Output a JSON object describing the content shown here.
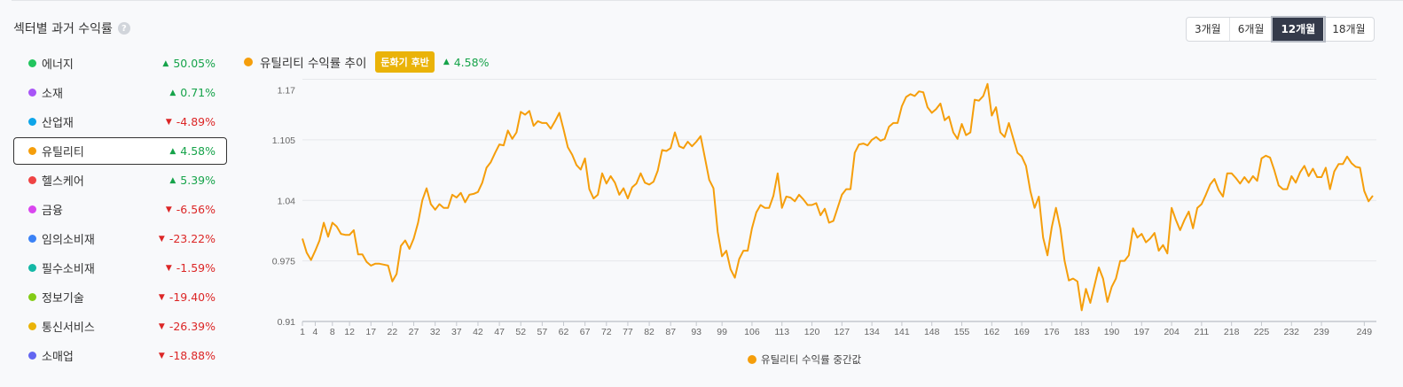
{
  "title": "섹터별 과거 수익률",
  "help_icon": "question-circle-icon",
  "periods": [
    {
      "label": "3개월"
    },
    {
      "label": "6개월"
    },
    {
      "label": "12개월",
      "active": true
    },
    {
      "label": "18개월"
    }
  ],
  "sectors": [
    {
      "name": "에너지",
      "color": "#22c55e",
      "dir": "up",
      "pct": "50.05%"
    },
    {
      "name": "소재",
      "color": "#a855f7",
      "dir": "up",
      "pct": "0.71%"
    },
    {
      "name": "산업재",
      "color": "#0ea5e9",
      "dir": "down",
      "pct": "-4.89%"
    },
    {
      "name": "유틸리티",
      "color": "#f59e0b",
      "dir": "up",
      "pct": "4.58%",
      "selected": true
    },
    {
      "name": "헬스케어",
      "color": "#ef4444",
      "dir": "up",
      "pct": "5.39%"
    },
    {
      "name": "금융",
      "color": "#d946ef",
      "dir": "down",
      "pct": "-6.56%"
    },
    {
      "name": "임의소비재",
      "color": "#3b82f6",
      "dir": "down",
      "pct": "-23.22%"
    },
    {
      "name": "필수소비재",
      "color": "#14b8a6",
      "dir": "down",
      "pct": "-1.59%"
    },
    {
      "name": "정보기술",
      "color": "#84cc16",
      "dir": "down",
      "pct": "-19.40%"
    },
    {
      "name": "통신서비스",
      "color": "#eab308",
      "dir": "down",
      "pct": "-26.39%"
    },
    {
      "name": "소매업",
      "color": "#6366f1",
      "dir": "down",
      "pct": "-18.88%"
    }
  ],
  "chart_header": {
    "title": "유틸리티 수익률 추이",
    "badge": "둔화기 후반",
    "pct": "4.58%",
    "color": "#f59e0b"
  },
  "chart_data": {
    "type": "line",
    "ylim": [
      0.91,
      1.17
    ],
    "yticks": [
      "1.17",
      "1.105",
      "1.04",
      "0.975",
      "0.91"
    ],
    "xticks": [
      1,
      4,
      8,
      12,
      17,
      22,
      27,
      32,
      37,
      42,
      47,
      52,
      57,
      62,
      67,
      72,
      77,
      82,
      87,
      93,
      99,
      106,
      113,
      120,
      127,
      134,
      141,
      148,
      155,
      162,
      169,
      176,
      183,
      190,
      197,
      204,
      211,
      218,
      225,
      232,
      239,
      249
    ],
    "grid": true,
    "legend_position": "bottom",
    "series": [
      {
        "name": "유틸리티 수익률 중간값",
        "color": "#f59e0b",
        "values": [
          0.999,
          0.984,
          0.976,
          0.986,
          0.997,
          1.016,
          1.001,
          1.016,
          1.012,
          1.004,
          1.003,
          1.003,
          1.008,
          0.982,
          0.982,
          0.974,
          0.97,
          0.972,
          0.972,
          0.971,
          0.97,
          0.953,
          0.961,
          0.991,
          0.997,
          0.988,
          0.999,
          1.016,
          1.04,
          1.053,
          1.036,
          1.03,
          1.036,
          1.032,
          1.032,
          1.046,
          1.043,
          1.048,
          1.038,
          1.046,
          1.047,
          1.049,
          1.059,
          1.075,
          1.081,
          1.091,
          1.1,
          1.099,
          1.115,
          1.106,
          1.113,
          1.135,
          1.132,
          1.136,
          1.12,
          1.125,
          1.123,
          1.123,
          1.117,
          1.125,
          1.134,
          1.116,
          1.097,
          1.089,
          1.078,
          1.073,
          1.085,
          1.052,
          1.042,
          1.046,
          1.069,
          1.058,
          1.066,
          1.059,
          1.046,
          1.053,
          1.042,
          1.054,
          1.058,
          1.069,
          1.059,
          1.057,
          1.06,
          1.072,
          1.094,
          1.093,
          1.096,
          1.113,
          1.098,
          1.096,
          1.103,
          1.098,
          1.103,
          1.109,
          1.086,
          1.062,
          1.053,
          1.006,
          0.98,
          0.986,
          0.966,
          0.957,
          0.977,
          0.986,
          0.986,
          1.01,
          1.027,
          1.035,
          1.032,
          1.032,
          1.045,
          1.069,
          1.032,
          1.044,
          1.043,
          1.039,
          1.046,
          1.041,
          1.035,
          1.035,
          1.037,
          1.024,
          1.031,
          1.016,
          1.018,
          1.032,
          1.046,
          1.052,
          1.052,
          1.091,
          1.1,
          1.101,
          1.099,
          1.105,
          1.108,
          1.104,
          1.106,
          1.119,
          1.123,
          1.123,
          1.141,
          1.151,
          1.154,
          1.152,
          1.157,
          1.156,
          1.14,
          1.134,
          1.138,
          1.144,
          1.126,
          1.13,
          1.113,
          1.106,
          1.122,
          1.11,
          1.113,
          1.148,
          1.147,
          1.152,
          1.165,
          1.131,
          1.14,
          1.113,
          1.108,
          1.123,
          1.107,
          1.091,
          1.087,
          1.077,
          1.05,
          1.032,
          1.044,
          1.0,
          0.981,
          1.011,
          1.032,
          1.01,
          0.975,
          0.954,
          0.956,
          0.953,
          0.922,
          0.945,
          0.93,
          0.949,
          0.968,
          0.956,
          0.931,
          0.947,
          0.956,
          0.975,
          0.975,
          0.981,
          1.01,
          1.0,
          1.004,
          0.995,
          0.999,
          1.005,
          0.986,
          0.992,
          0.983,
          1.032,
          1.019,
          1.008,
          1.019,
          1.028,
          1.01,
          1.032,
          1.036,
          1.046,
          1.057,
          1.063,
          1.051,
          1.044,
          1.069,
          1.069,
          1.064,
          1.058,
          1.065,
          1.059,
          1.066,
          1.061,
          1.085,
          1.088,
          1.086,
          1.072,
          1.056,
          1.052,
          1.052,
          1.066,
          1.059,
          1.07,
          1.077,
          1.066,
          1.074,
          1.065,
          1.065,
          1.075,
          1.052,
          1.071,
          1.079,
          1.079,
          1.087,
          1.08,
          1.076,
          1.075,
          1.05,
          1.039,
          1.045
        ]
      }
    ]
  }
}
